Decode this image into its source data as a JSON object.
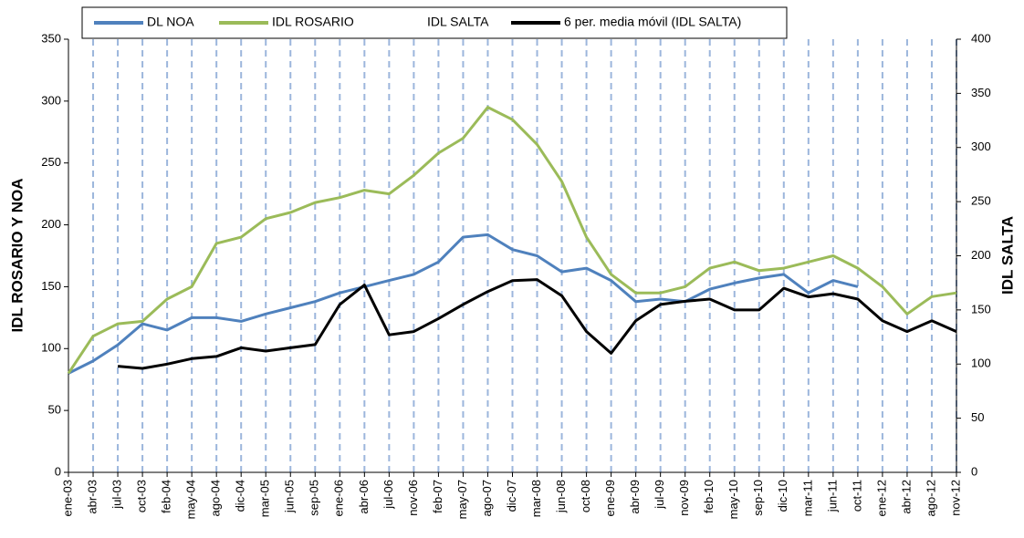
{
  "chart_data": {
    "type": "line",
    "categories": [
      "ene-03",
      "abr-03",
      "jul-03",
      "oct-03",
      "feb-04",
      "may-04",
      "ago-04",
      "dic-04",
      "mar-05",
      "jun-05",
      "sep-05",
      "ene-06",
      "abr-06",
      "jul-06",
      "nov-06",
      "feb-07",
      "may-07",
      "ago-07",
      "dic-07",
      "mar-08",
      "jun-08",
      "oct-08",
      "ene-09",
      "abr-09",
      "jul-09",
      "nov-09",
      "feb-10",
      "may-10",
      "sep-10",
      "dic-10",
      "mar-11",
      "jun-11",
      "oct-11",
      "ene-12",
      "abr-12",
      "ago-12",
      "nov-12"
    ],
    "y_label": "IDL ROSARIO Y NOA",
    "y2_label": "IDL SALTA",
    "ylim": [
      0,
      350
    ],
    "yticks": [
      0,
      50,
      100,
      150,
      200,
      250,
      300,
      350
    ],
    "y2lim": [
      0,
      400
    ],
    "y2ticks": [
      0,
      50,
      100,
      150,
      200,
      250,
      300,
      350,
      400
    ],
    "grid": true,
    "series": [
      {
        "name": "DL NOA",
        "color": "#4f81bd",
        "values": [
          80,
          90,
          103,
          120,
          115,
          125,
          125,
          122,
          128,
          133,
          138,
          145,
          150,
          155,
          160,
          170,
          190,
          192,
          180,
          175,
          162,
          165,
          155,
          138,
          140,
          138,
          148,
          153,
          157,
          160,
          145,
          155,
          150,
          null,
          null,
          null,
          null
        ]
      },
      {
        "name": "IDL ROSARIO",
        "color": "#9bbb59",
        "values": [
          80,
          110,
          120,
          122,
          140,
          150,
          185,
          190,
          205,
          210,
          218,
          222,
          228,
          225,
          240,
          258,
          270,
          295,
          285,
          265,
          235,
          190,
          160,
          145,
          145,
          150,
          165,
          170,
          163,
          165,
          170,
          175,
          165,
          150,
          128,
          142,
          145
        ]
      },
      {
        "name": "IDL SALTA",
        "color": "#ffffff",
        "axis": "y2",
        "values": [
          null,
          null,
          null,
          null,
          null,
          null,
          null,
          null,
          null,
          null,
          null,
          null,
          null,
          null,
          null,
          null,
          null,
          null,
          null,
          null,
          null,
          null,
          null,
          null,
          null,
          null,
          null,
          null,
          null,
          null,
          null,
          null,
          null,
          null,
          null,
          null,
          null
        ]
      },
      {
        "name": "6 per. media móvil (IDL SALTA)",
        "color": "#000000",
        "axis": "y2",
        "values": [
          null,
          null,
          98,
          96,
          100,
          105,
          107,
          115,
          112,
          115,
          118,
          155,
          173,
          127,
          130,
          142,
          155,
          167,
          177,
          178,
          163,
          130,
          110,
          140,
          155,
          158,
          160,
          150,
          150,
          170,
          162,
          165,
          160,
          140,
          130,
          140,
          130
        ]
      }
    ]
  }
}
